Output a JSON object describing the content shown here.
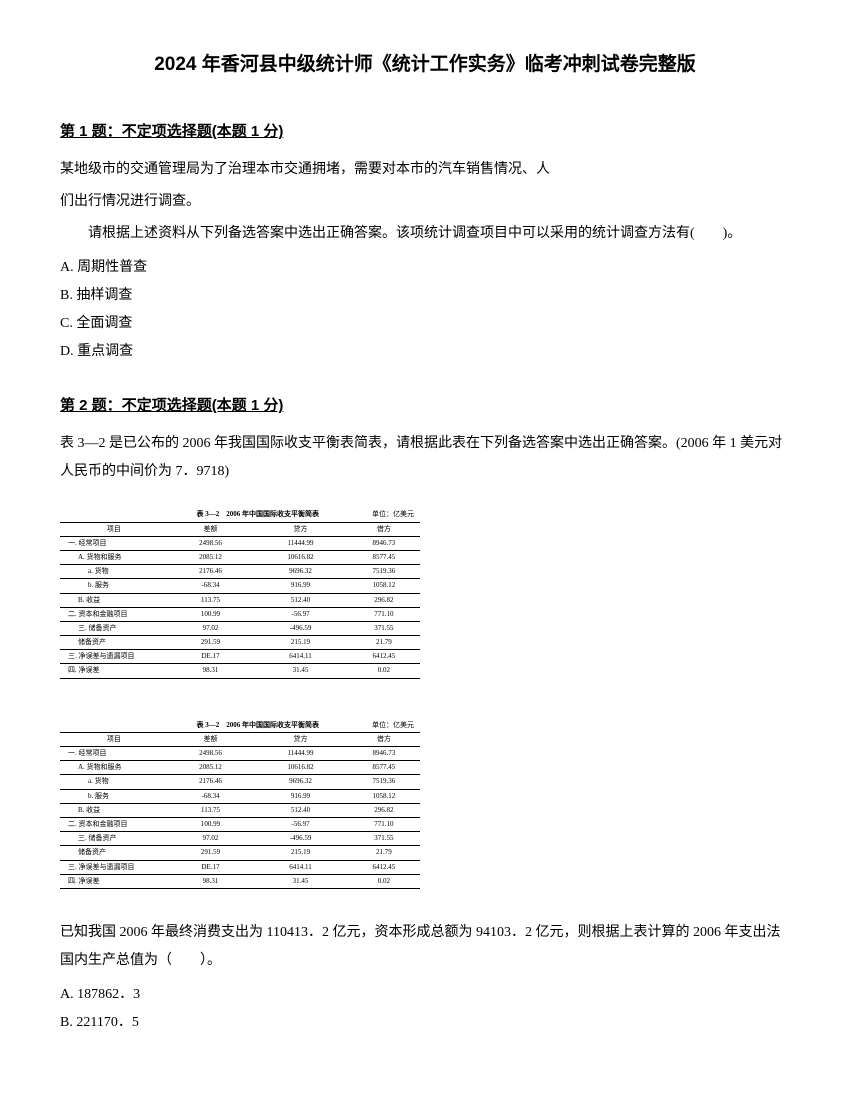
{
  "title": "2024 年香河县中级统计师《统计工作实务》临考冲刺试卷完整版",
  "q1": {
    "header_prefix": "第 1 题：",
    "header_type": "不定项选择题(本题 1 分)",
    "line1": "某地级市的交通管理局为了治理本市交通拥堵，需要对本市的汽车销售情况、人",
    "line2": "们出行情况进行调查。",
    "line3": "请根据上述资料从下列备选答案中选出正确答案。该项统计调查项目中可以采用的统计调查方法有(　　)。",
    "optA": "A. 周期性普查",
    "optB": "B. 抽样调查",
    "optC": "C. 全面调查",
    "optD": "D. 重点调查"
  },
  "q2": {
    "header_prefix": "第 2 题：",
    "header_type": "不定项选择题(本题 1 分)",
    "intro": "表 3—2 是已公布的 2006 年我国国际收支平衡表简表，请根据此表在下列备选答案中选出正确答案。(2006 年 1 美元对人民币的中间价为 7．9718)",
    "table": {
      "caption_center": "表 3—2　2006 年中国国际收支平衡简表",
      "caption_right": "单位：亿美元",
      "headers": [
        "项目",
        "差额",
        "贷方",
        "借方"
      ],
      "rows": [
        {
          "label": "一. 经常项目",
          "c1": "2498.56",
          "c2": "11444.99",
          "c3": "8946.73",
          "cls": ""
        },
        {
          "label": "A. 货物和服务",
          "c1": "2085.12",
          "c2": "10616.82",
          "c3": "8577.45",
          "cls": "sub1"
        },
        {
          "label": "a. 货物",
          "c1": "2176.46",
          "c2": "9696.32",
          "c3": "7519.36",
          "cls": "sub2"
        },
        {
          "label": "b. 服务",
          "c1": "-68.34",
          "c2": "916.99",
          "c3": "1058.12",
          "cls": "sub2"
        },
        {
          "label": "B. 收益",
          "c1": "113.75",
          "c2": "512.40",
          "c3": "296.82",
          "cls": "sub1"
        },
        {
          "label": "二. 资本和金融项目",
          "c1": "100.99",
          "c2": "-56.97",
          "c3": "771.10",
          "cls": ""
        },
        {
          "label": "三. 储备资产",
          "c1": "97.02",
          "c2": "-496.59",
          "c3": "371.55",
          "cls": "sub1"
        },
        {
          "label": "储备资产",
          "c1": "291.59",
          "c2": "215.19",
          "c3": "21.79",
          "cls": "sub1"
        },
        {
          "label": "三. 净误差与遗漏项目",
          "c1": "DE.17",
          "c2": "6414.11",
          "c3": "6412.45",
          "cls": ""
        },
        {
          "label": "四. 净误差",
          "c1": "98.31",
          "c2": "31.45",
          "c3": "0.02",
          "cls": ""
        }
      ]
    },
    "post": "已知我国 2006 年最终消费支出为 110413．2 亿元，资本形成总额为 94103．2 亿元，则根据上表计算的 2006 年支出法国内生产总值为（　　）。",
    "optA": "A. 187862．3",
    "optB": "B. 221170．5"
  }
}
